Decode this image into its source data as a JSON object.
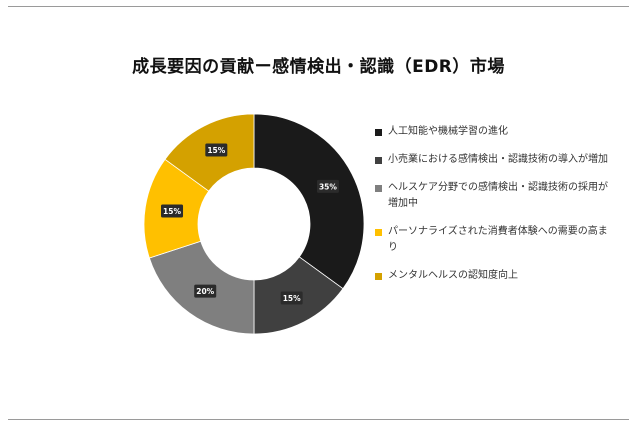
{
  "title": "成長要因の貢献ー感情検出・認識（EDR）市場",
  "chart_data": {
    "type": "pie",
    "donut": true,
    "legend_position": "right",
    "slices": [
      {
        "label": "人工知能や機械学習の進化",
        "value": 35,
        "display": "35%",
        "color": "#1a1a1a"
      },
      {
        "label": "小売業における感情検出・認識技術の導入が増加",
        "value": 15,
        "display": "15%",
        "color": "#404040"
      },
      {
        "label": "ヘルスケア分野での感情検出・認識技術の採用が増加中",
        "value": 20,
        "display": "20%",
        "color": "#7f7f7f"
      },
      {
        "label": "パーソナライズされた消費者体験への需要の高まり",
        "value": 15,
        "display": "15%",
        "color": "#ffc000"
      },
      {
        "label": "メンタルヘルスの認知度向上",
        "value": 15,
        "display": "15%",
        "color": "#d4a100"
      }
    ]
  }
}
